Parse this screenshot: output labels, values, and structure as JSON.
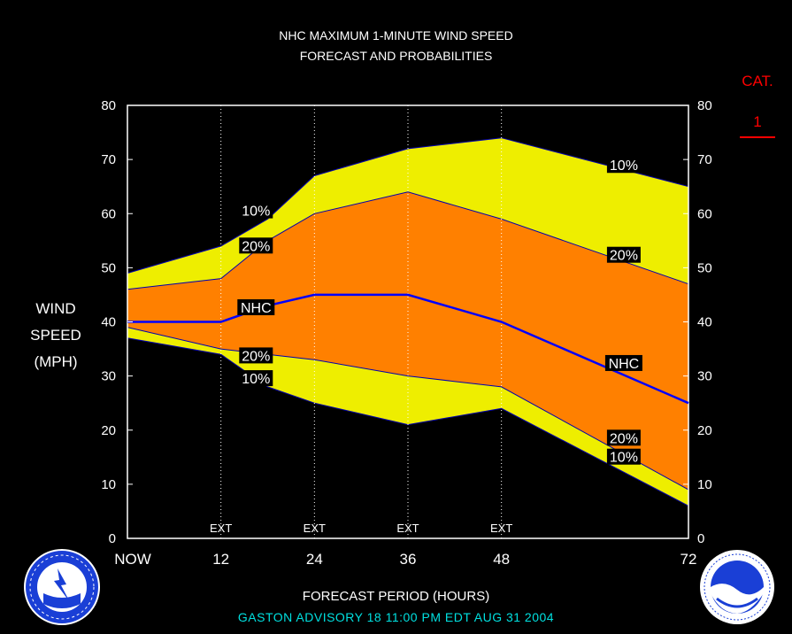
{
  "header": {
    "title_line1": "NHC MAXIMUM 1-MINUTE WIND SPEED",
    "title_line2": "FORECAST AND PROBABILITIES"
  },
  "y_axis_label": [
    "WIND",
    "SPEED",
    "(MPH)"
  ],
  "category": {
    "label": "CAT.",
    "value": "1",
    "color": "#ff0000"
  },
  "x_axis_title": "FORECAST PERIOD (HOURS)",
  "advisory": "GASTON    ADVISORY  18 11:00  PM  EDT  AUG 31  2004",
  "colors": {
    "band_10": "#eeee00",
    "band_20": "#ff8000",
    "nhc_line": "#0000ff",
    "band_edge": "#0000b0",
    "frame": "#ffffff",
    "background": "#000000",
    "advisory_text": "#00e0e0"
  },
  "icons": [
    "nws-logo-icon",
    "noaa-logo-icon"
  ],
  "chart_data": {
    "type": "area",
    "x": [
      0,
      12,
      18,
      24,
      36,
      48,
      72
    ],
    "xlim": [
      0,
      72
    ],
    "ylim": [
      0,
      80
    ],
    "y_ticks": [
      0,
      10,
      20,
      30,
      40,
      50,
      60,
      70,
      80
    ],
    "x_tick_labels": [
      {
        "x": 0,
        "label": "NOW"
      },
      {
        "x": 12,
        "label": "12"
      },
      {
        "x": 24,
        "label": "24"
      },
      {
        "x": 36,
        "label": "36"
      },
      {
        "x": 48,
        "label": "48"
      },
      {
        "x": 72,
        "label": "72"
      }
    ],
    "ext_markers": {
      "x": [
        12,
        24,
        36,
        48
      ],
      "label": "EXT"
    },
    "series": [
      {
        "name": "10%",
        "role": "upper_10",
        "values": [
          49,
          54,
          59,
          67,
          72,
          74,
          65
        ]
      },
      {
        "name": "20%",
        "role": "upper_20",
        "values": [
          46,
          48,
          55,
          60,
          64,
          59,
          47
        ]
      },
      {
        "name": "NHC",
        "role": "nhc",
        "values": [
          40,
          40,
          43,
          45,
          45,
          40,
          25
        ]
      },
      {
        "name": "20%",
        "role": "lower_20",
        "values": [
          39,
          35,
          34,
          33,
          30,
          28,
          9
        ]
      },
      {
        "name": "10%",
        "role": "lower_10",
        "values": [
          37,
          34,
          28,
          25,
          21,
          24,
          6
        ]
      }
    ],
    "annotations": [
      {
        "text": "10%",
        "x": 16.5,
        "y": 60.6
      },
      {
        "text": "20%",
        "x": 16.5,
        "y": 54.1
      },
      {
        "text": "NHC",
        "x": 16.5,
        "y": 42.7
      },
      {
        "text": "20%",
        "x": 16.5,
        "y": 33.8
      },
      {
        "text": "10%",
        "x": 16.5,
        "y": 29.6
      },
      {
        "text": "10%",
        "x": 63.7,
        "y": 69.0
      },
      {
        "text": "20%",
        "x": 63.7,
        "y": 52.4
      },
      {
        "text": "NHC",
        "x": 63.7,
        "y": 32.4
      },
      {
        "text": "20%",
        "x": 63.7,
        "y": 18.6
      },
      {
        "text": "10%",
        "x": 63.7,
        "y": 15.1
      }
    ]
  }
}
